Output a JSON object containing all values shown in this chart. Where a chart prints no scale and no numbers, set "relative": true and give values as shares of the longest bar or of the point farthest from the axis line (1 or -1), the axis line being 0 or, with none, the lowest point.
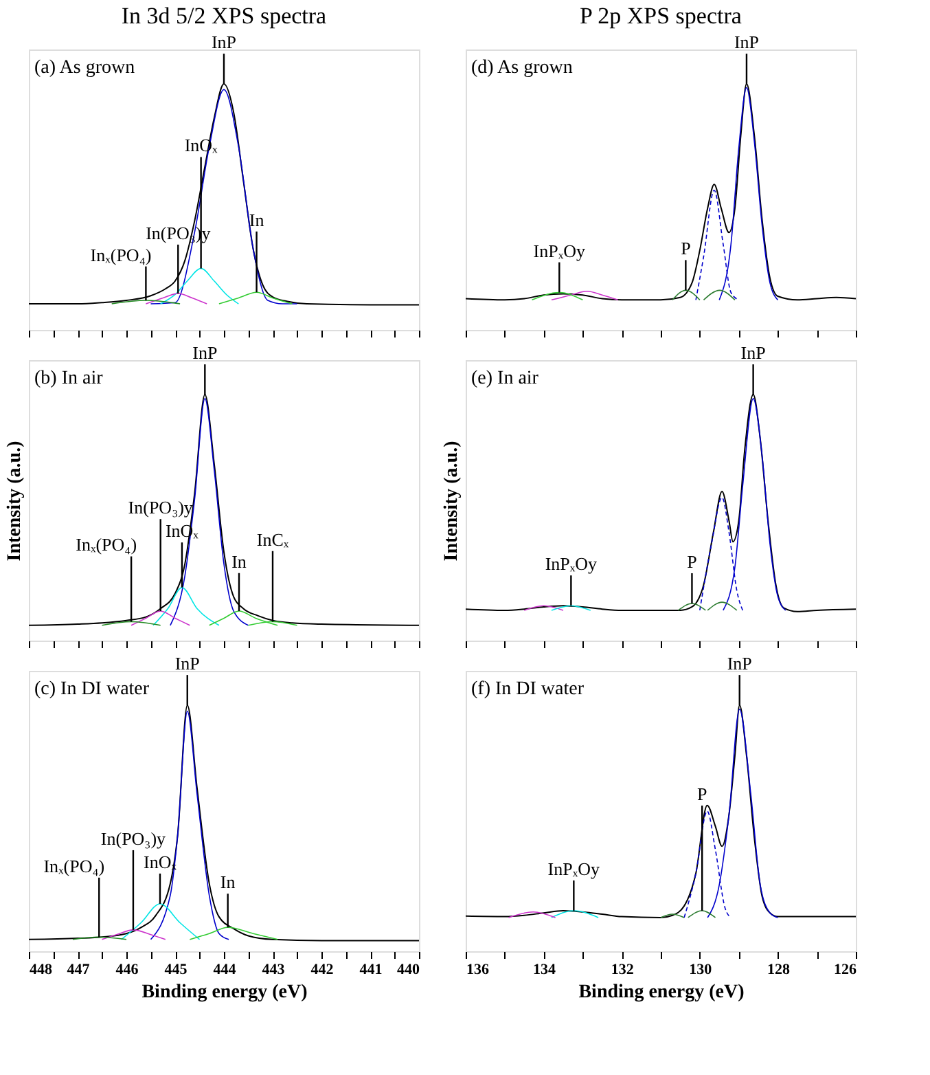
{
  "chart_data": [
    {
      "type": "line",
      "relative": true,
      "title": "In 3d 5/2 XPS spectra",
      "xlim": [
        448,
        440
      ],
      "tick_labels": false,
      "xticks": [
        {
          "value": 448,
          "label": null
        },
        {
          "value": 447.5,
          "label": null
        },
        {
          "value": 447,
          "label": null
        },
        {
          "value": 446.5,
          "label": null
        },
        {
          "value": 446,
          "label": null
        },
        {
          "value": 445.5,
          "label": null
        },
        {
          "value": 445,
          "label": null
        },
        {
          "value": 444.5,
          "label": null
        },
        {
          "value": 444,
          "label": null
        },
        {
          "value": 443.5,
          "label": null
        },
        {
          "value": 443,
          "label": null
        },
        {
          "value": 442.5,
          "label": null
        },
        {
          "value": 442,
          "label": null
        },
        {
          "value": 441.5,
          "label": null
        },
        {
          "value": 441,
          "label": null
        },
        {
          "value": 440.5,
          "label": null
        },
        {
          "value": 440,
          "label": null
        }
      ],
      "series": [
        {
          "color": "#000000",
          "x": [
            448,
            447,
            446.5,
            446,
            445.5,
            445.2,
            445,
            444.8,
            444.6,
            444.4,
            444.2,
            444.0,
            443.8,
            443.6,
            443.4,
            443.2,
            443.0,
            442.7,
            442.3,
            441,
            440
          ],
          "values": [
            0.106,
            0.106,
            0.111,
            0.12,
            0.139,
            0.167,
            0.199,
            0.282,
            0.444,
            0.653,
            0.861,
            1.0,
            0.884,
            0.606,
            0.329,
            0.181,
            0.134,
            0.116,
            0.106,
            0.102,
            0.102
          ]
        },
        {
          "color": "#0000cc",
          "x": [
            445.5,
            445,
            444.6,
            444.3,
            444.0,
            443.7,
            443.4,
            443.1,
            442.8,
            442.5
          ],
          "values": [
            0.106,
            0.111,
            0.398,
            0.745,
            0.977,
            0.745,
            0.329,
            0.12,
            0.106,
            0.106
          ]
        },
        {
          "color": "#00e5e5",
          "x": [
            445.3,
            445.0,
            444.75,
            444.47,
            444.2,
            443.95,
            443.7
          ],
          "values": [
            0.106,
            0.144,
            0.199,
            0.25,
            0.199,
            0.144,
            0.106
          ]
        },
        {
          "color": "#cc33cc",
          "x": [
            445.6,
            445.25,
            444.94,
            444.65,
            444.35
          ],
          "values": [
            0.106,
            0.13,
            0.148,
            0.13,
            0.106
          ]
        },
        {
          "color": "#228b22",
          "x": [
            446.3,
            445.6,
            444.9
          ],
          "values": [
            0.106,
            0.12,
            0.106
          ]
        },
        {
          "color": "#33cc33",
          "x": [
            444.1,
            443.7,
            443.33,
            443.0,
            442.6
          ],
          "values": [
            0.106,
            0.13,
            0.153,
            0.13,
            0.106
          ]
        }
      ],
      "annotations": [
        "(a) As grown",
        {
          "text": "InP",
          "x": 444.0,
          "y": 1.0
        },
        {
          "text": "InOₓ",
          "x": 444.47,
          "y": 0.25
        },
        {
          "text": "In(PO₃)y",
          "x": 444.94,
          "y": 0.148
        },
        {
          "text": "Inₓ(PO₄)",
          "x": 445.6,
          "y": 0.12
        },
        {
          "text": "In",
          "x": 443.33,
          "y": 0.153
        }
      ]
    },
    {
      "type": "line",
      "relative": true,
      "title": "P 2p XPS spectra",
      "xlim": [
        136,
        126
      ],
      "tick_labels": false,
      "xticks": [
        {
          "value": 136,
          "label": null
        },
        {
          "value": 135,
          "label": null
        },
        {
          "value": 134,
          "label": null
        },
        {
          "value": 133,
          "label": null
        },
        {
          "value": 132,
          "label": null
        },
        {
          "value": 131,
          "label": null
        },
        {
          "value": 130,
          "label": null
        },
        {
          "value": 129,
          "label": null
        },
        {
          "value": 128,
          "label": null
        },
        {
          "value": 127,
          "label": null
        },
        {
          "value": 126,
          "label": null
        }
      ],
      "series": [
        {
          "color": "#000000",
          "x": [
            136,
            135,
            134.5,
            134,
            133.5,
            133,
            132.5,
            132,
            131,
            130.5,
            130.2,
            130.0,
            129.8,
            129.63,
            129.45,
            129.25,
            129.1,
            128.95,
            128.8,
            128.6,
            128.4,
            128.2,
            128.0,
            127.5,
            127,
            126.5,
            126
          ],
          "values": [
            0.127,
            0.122,
            0.127,
            0.142,
            0.147,
            0.142,
            0.127,
            0.122,
            0.122,
            0.132,
            0.191,
            0.323,
            0.494,
            0.592,
            0.494,
            0.396,
            0.494,
            0.788,
            1.0,
            0.788,
            0.445,
            0.21,
            0.137,
            0.122,
            0.127,
            0.132,
            0.127
          ]
        },
        {
          "color": "#0000cc",
          "x": [
            129.5,
            129.2,
            129.0,
            128.8,
            128.6,
            128.4,
            128.2,
            128.0
          ],
          "values": [
            0.122,
            0.348,
            0.739,
            0.985,
            0.764,
            0.421,
            0.191,
            0.122
          ]
        },
        {
          "color": "#0000cc",
          "line_style": "dashed",
          "x": [
            130.1,
            129.9,
            129.63,
            129.4,
            129.2,
            129.0
          ],
          "values": [
            0.122,
            0.299,
            0.568,
            0.348,
            0.152,
            0.122
          ]
        },
        {
          "color": "#2e7d32",
          "x": [
            130.7,
            130.36,
            130.0
          ],
          "values": [
            0.122,
            0.161,
            0.122
          ]
        },
        {
          "color": "#2e7d32",
          "x": [
            129.9,
            129.49,
            129.1
          ],
          "values": [
            0.122,
            0.161,
            0.122
          ]
        },
        {
          "color": "#cc33cc",
          "x": [
            133.8,
            133.3,
            132.89,
            132.5,
            132.1
          ],
          "values": [
            0.122,
            0.142,
            0.157,
            0.142,
            0.122
          ]
        },
        {
          "color": "#33cc33",
          "x": [
            134.3,
            133.6,
            133.0
          ],
          "values": [
            0.122,
            0.152,
            0.122
          ]
        }
      ],
      "annotations": [
        "(d) As grown",
        {
          "text": "InP",
          "x": 128.8,
          "y": 1.0
        },
        {
          "text": "P",
          "x": 130.36,
          "y": 0.161
        },
        {
          "text": "InPₓOy",
          "x": 133.6,
          "y": 0.152
        }
      ]
    },
    {
      "type": "line",
      "relative": true,
      "ylabel": "Intensity (a.u.)",
      "xlim": [
        448,
        440
      ],
      "tick_labels": false,
      "xticks": [
        {
          "value": 448,
          "label": null
        },
        {
          "value": 447.5,
          "label": null
        },
        {
          "value": 447,
          "label": null
        },
        {
          "value": 446.5,
          "label": null
        },
        {
          "value": 446,
          "label": null
        },
        {
          "value": 445.5,
          "label": null
        },
        {
          "value": 445,
          "label": null
        },
        {
          "value": 444.5,
          "label": null
        },
        {
          "value": 444,
          "label": null
        },
        {
          "value": 443.5,
          "label": null
        },
        {
          "value": 443,
          "label": null
        },
        {
          "value": 442.5,
          "label": null
        },
        {
          "value": 442,
          "label": null
        },
        {
          "value": 441.5,
          "label": null
        },
        {
          "value": 441,
          "label": null
        },
        {
          "value": 440.5,
          "label": null
        },
        {
          "value": 440,
          "label": null
        }
      ],
      "series": [
        {
          "color": "#000000",
          "x": [
            448,
            447,
            446.5,
            446,
            445.6,
            445.3,
            445.0,
            444.8,
            444.6,
            444.39,
            444.2,
            444.0,
            443.8,
            443.6,
            443.3,
            443.0,
            442.6,
            442,
            440
          ],
          "values": [
            0.062,
            0.067,
            0.072,
            0.082,
            0.096,
            0.13,
            0.192,
            0.312,
            0.6,
            1.0,
            0.72,
            0.36,
            0.178,
            0.13,
            0.101,
            0.082,
            0.072,
            0.067,
            0.062
          ]
        },
        {
          "color": "#0000cc",
          "x": [
            445.1,
            444.8,
            444.6,
            444.39,
            444.2,
            444.0,
            443.8,
            443.5
          ],
          "values": [
            0.062,
            0.264,
            0.576,
            0.984,
            0.696,
            0.312,
            0.12,
            0.062
          ]
        },
        {
          "color": "#00e5e5",
          "x": [
            445.45,
            445.15,
            444.86,
            444.55,
            444.1
          ],
          "values": [
            0.062,
            0.13,
            0.216,
            0.13,
            0.062
          ]
        },
        {
          "color": "#cc33cc",
          "x": [
            445.9,
            445.6,
            445.3,
            445.0,
            444.7
          ],
          "values": [
            0.062,
            0.091,
            0.12,
            0.091,
            0.062
          ]
        },
        {
          "color": "#228b22",
          "x": [
            446.5,
            445.9,
            445.3
          ],
          "values": [
            0.062,
            0.077,
            0.062
          ]
        },
        {
          "color": "#33cc33",
          "x": [
            444.3,
            444.0,
            443.69,
            443.35,
            442.9
          ],
          "values": [
            0.062,
            0.091,
            0.12,
            0.091,
            0.062
          ]
        },
        {
          "color": "#33cc33",
          "x": [
            443.5,
            443.0,
            442.5
          ],
          "values": [
            0.062,
            0.077,
            0.062
          ]
        }
      ],
      "annotations": [
        "(b) In air",
        {
          "text": "InP",
          "x": 444.39,
          "y": 1.0
        },
        {
          "text": "InOₓ",
          "x": 444.86,
          "y": 0.216
        },
        {
          "text": "In(PO₃)y",
          "x": 445.3,
          "y": 0.12
        },
        {
          "text": "Inₓ(PO₄)",
          "x": 445.9,
          "y": 0.077
        },
        {
          "text": "In",
          "x": 443.69,
          "y": 0.12
        },
        {
          "text": "InCₓ",
          "x": 443.0,
          "y": 0.077
        }
      ]
    },
    {
      "type": "line",
      "relative": true,
      "ylabel": "Intensity (a.u.)",
      "xlim": [
        136,
        126
      ],
      "tick_labels": false,
      "xticks": [
        {
          "value": 136,
          "label": null
        },
        {
          "value": 135,
          "label": null
        },
        {
          "value": 134,
          "label": null
        },
        {
          "value": 133,
          "label": null
        },
        {
          "value": 132,
          "label": null
        },
        {
          "value": 131,
          "label": null
        },
        {
          "value": 130,
          "label": null
        },
        {
          "value": 129,
          "label": null
        },
        {
          "value": 128,
          "label": null
        },
        {
          "value": 127,
          "label": null
        },
        {
          "value": 126,
          "label": null
        }
      ],
      "series": [
        {
          "color": "#000000",
          "x": [
            136,
            135,
            134.5,
            134,
            133.5,
            133,
            132.5,
            132,
            131,
            130.5,
            130.2,
            129.9,
            129.65,
            129.43,
            129.25,
            129.15,
            129.0,
            128.85,
            128.63,
            128.45,
            128.25,
            128.05,
            127.85,
            127.5,
            127,
            126
          ],
          "values": [
            0.128,
            0.123,
            0.128,
            0.137,
            0.142,
            0.137,
            0.128,
            0.123,
            0.123,
            0.123,
            0.137,
            0.227,
            0.44,
            0.606,
            0.487,
            0.402,
            0.487,
            0.771,
            1.0,
            0.82,
            0.487,
            0.227,
            0.133,
            0.118,
            0.123,
            0.128
          ]
        },
        {
          "color": "#0000cc",
          "x": [
            129.4,
            129.1,
            128.9,
            128.63,
            128.4,
            128.2,
            128.0,
            127.8
          ],
          "values": [
            0.123,
            0.298,
            0.629,
            0.984,
            0.748,
            0.393,
            0.18,
            0.123
          ]
        },
        {
          "color": "#0000cc",
          "line_style": "dashed",
          "x": [
            130.0,
            129.7,
            129.43,
            129.25,
            129.05,
            128.9
          ],
          "values": [
            0.123,
            0.393,
            0.582,
            0.44,
            0.203,
            0.123
          ]
        },
        {
          "color": "#2e7d32",
          "x": [
            130.55,
            130.2,
            129.85
          ],
          "values": [
            0.123,
            0.151,
            0.123
          ]
        },
        {
          "color": "#2e7d32",
          "x": [
            129.8,
            129.43,
            129.05
          ],
          "values": [
            0.123,
            0.156,
            0.123
          ]
        },
        {
          "color": "#cc33cc",
          "x": [
            134.5,
            134.0,
            133.5
          ],
          "values": [
            0.123,
            0.142,
            0.123
          ]
        },
        {
          "color": "#00e5e5",
          "x": [
            133.8,
            133.3,
            132.8
          ],
          "values": [
            0.123,
            0.142,
            0.123
          ]
        }
      ],
      "annotations": [
        "(e) In air",
        {
          "text": "InP",
          "x": 128.63,
          "y": 1.0
        },
        {
          "text": "P",
          "x": 130.2,
          "y": 0.151
        },
        {
          "text": "InPₓOy",
          "x": 133.3,
          "y": 0.142
        }
      ]
    },
    {
      "type": "line",
      "relative": true,
      "xlabel": "Binding energy (eV)",
      "xlim": [
        448,
        440
      ],
      "tick_labels": "x",
      "xticks": [
        448,
        {
          "value": 447.5,
          "label": null
        },
        447,
        {
          "value": 446.5,
          "label": null
        },
        446,
        {
          "value": 445.5,
          "label": null
        },
        445,
        {
          "value": 444.5,
          "label": null
        },
        444,
        {
          "value": 443.5,
          "label": null
        },
        443,
        {
          "value": 442.5,
          "label": null
        },
        442,
        {
          "value": 441.5,
          "label": null
        },
        441,
        {
          "value": 440.5,
          "label": null
        },
        440
      ],
      "series": [
        {
          "color": "#000000",
          "x": [
            448,
            447,
            446.5,
            446,
            445.7,
            445.4,
            445.1,
            444.95,
            444.75,
            444.55,
            444.3,
            444.1,
            443.8,
            443.5,
            443.0,
            442,
            440
          ],
          "values": [
            0.048,
            0.053,
            0.058,
            0.072,
            0.097,
            0.145,
            0.275,
            0.469,
            1.0,
            0.662,
            0.275,
            0.14,
            0.092,
            0.063,
            0.048,
            0.043,
            0.043
          ]
        },
        {
          "color": "#0000cc",
          "x": [
            445.5,
            445.1,
            444.95,
            444.75,
            444.55,
            444.3,
            444.1,
            443.9
          ],
          "values": [
            0.048,
            0.227,
            0.469,
            0.976,
            0.638,
            0.227,
            0.072,
            0.048
          ]
        },
        {
          "color": "#00e5e5",
          "x": [
            446.1,
            445.7,
            445.31,
            444.9,
            444.5
          ],
          "values": [
            0.048,
            0.116,
            0.193,
            0.116,
            0.048
          ]
        },
        {
          "color": "#cc33cc",
          "x": [
            446.5,
            446.2,
            445.86,
            445.5,
            445.2
          ],
          "values": [
            0.048,
            0.068,
            0.087,
            0.068,
            0.048
          ]
        },
        {
          "color": "#228b22",
          "x": [
            447.1,
            446.56,
            446.0
          ],
          "values": [
            0.048,
            0.058,
            0.048
          ]
        },
        {
          "color": "#33cc33",
          "x": [
            444.7,
            444.3,
            443.92,
            443.4,
            442.9
          ],
          "values": [
            0.048,
            0.072,
            0.097,
            0.072,
            0.048
          ]
        }
      ],
      "annotations": [
        "(c) In DI water",
        {
          "text": "InP",
          "x": 444.75,
          "y": 1.0
        },
        {
          "text": "InOₓ",
          "x": 445.31,
          "y": 0.193
        },
        {
          "text": "In(PO₃)y",
          "x": 445.86,
          "y": 0.087
        },
        {
          "text": "Inₓ(PO₄)",
          "x": 446.56,
          "y": 0.058
        },
        {
          "text": "In",
          "x": 443.92,
          "y": 0.097
        }
      ]
    },
    {
      "type": "line",
      "relative": true,
      "xlabel": "Binding energy (eV)",
      "xlim": [
        136,
        126
      ],
      "tick_labels": "x",
      "xticks": [
        136,
        {
          "value": 135,
          "label": null
        },
        134,
        {
          "value": 133,
          "label": null
        },
        132,
        {
          "value": 131,
          "label": null
        },
        130,
        {
          "value": 129,
          "label": null
        },
        128,
        {
          "value": 127,
          "label": null
        },
        126
      ],
      "series": [
        {
          "color": "#000000",
          "x": [
            136,
            135,
            134.5,
            134,
            133.5,
            133,
            132.5,
            132,
            131,
            130.7,
            130.4,
            130.1,
            129.81,
            129.6,
            129.43,
            129.25,
            129.1,
            128.98,
            128.8,
            128.6,
            128.4,
            128.2,
            128,
            127,
            126
          ],
          "values": [
            0.143,
            0.141,
            0.146,
            0.156,
            0.165,
            0.16,
            0.151,
            0.141,
            0.137,
            0.146,
            0.184,
            0.317,
            0.593,
            0.508,
            0.427,
            0.556,
            0.794,
            1.0,
            0.794,
            0.46,
            0.222,
            0.156,
            0.141,
            0.141,
            0.141
          ]
        },
        {
          "color": "#0000cc",
          "x": [
            129.8,
            129.5,
            129.25,
            128.98,
            128.7,
            128.45,
            128.2,
            128.0
          ],
          "values": [
            0.137,
            0.27,
            0.556,
            0.984,
            0.651,
            0.27,
            0.156,
            0.137
          ]
        },
        {
          "color": "#0000cc",
          "line_style": "dashed",
          "x": [
            130.4,
            130.1,
            129.81,
            129.6,
            129.35,
            129.2
          ],
          "values": [
            0.137,
            0.317,
            0.57,
            0.413,
            0.175,
            0.137
          ]
        },
        {
          "color": "#2e7d32",
          "x": [
            130.3,
            129.94,
            129.6
          ],
          "values": [
            0.137,
            0.165,
            0.137
          ]
        },
        {
          "color": "#2e7d32",
          "x": [
            131.0,
            130.7,
            130.4
          ],
          "values": [
            0.137,
            0.151,
            0.137
          ]
        },
        {
          "color": "#00e5e5",
          "x": [
            133.8,
            133.23,
            132.6
          ],
          "values": [
            0.137,
            0.165,
            0.137
          ]
        },
        {
          "color": "#cc33cc",
          "x": [
            134.9,
            134.27,
            133.7
          ],
          "values": [
            0.137,
            0.16,
            0.137
          ]
        }
      ],
      "annotations": [
        "(f) In DI water",
        {
          "text": "InP",
          "x": 128.98,
          "y": 1.0
        },
        {
          "text": "P",
          "x": 129.94,
          "y": 0.165
        },
        {
          "text": "InPₓOy",
          "x": 133.23,
          "y": 0.165
        }
      ]
    }
  ]
}
